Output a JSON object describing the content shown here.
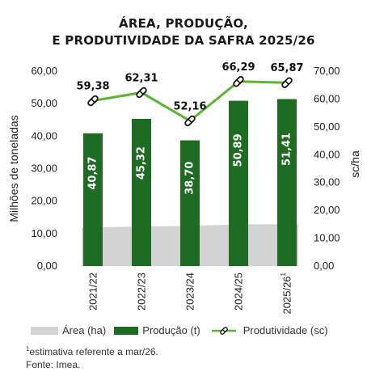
{
  "title": {
    "line1": "ÁREA, PRODUÇÃO,",
    "line2": "E PRODUTIVIDADE DA SAFRA 2025/26"
  },
  "colors": {
    "area": "#d3d3d3",
    "production": "#1e6b23",
    "productivity": "#5cb531"
  },
  "chart_data": {
    "type": "bar",
    "categories": [
      "2021/22",
      "2022/23",
      "2023/24",
      "2024/25",
      "2025/26"
    ],
    "category_superscripts": [
      "",
      "",
      "",
      "",
      "1"
    ],
    "series": [
      {
        "name": "Área (ha)",
        "type": "area",
        "axis": "left",
        "values": [
          11.8,
          12.2,
          12.4,
          12.8,
          13.0
        ]
      },
      {
        "name": "Produção (t)",
        "type": "bar",
        "axis": "left",
        "values": [
          40.87,
          45.32,
          38.7,
          50.89,
          51.41
        ],
        "labels": [
          "40,87",
          "45,32",
          "38,70",
          "50,89",
          "51,41"
        ]
      },
      {
        "name": "Produtividade (sc)",
        "type": "line",
        "axis": "right",
        "values": [
          59.38,
          62.31,
          52.16,
          66.29,
          65.87
        ],
        "labels": [
          "59,38",
          "62,31",
          "52,16",
          "66,29",
          "65,87"
        ]
      }
    ],
    "ylabel": "Milhões de toneladas",
    "y2label": "sc/ha",
    "ylim": [
      0,
      60
    ],
    "y2lim": [
      0,
      70
    ],
    "yticks": [
      "0,00",
      "10,00",
      "20,00",
      "30,00",
      "40,00",
      "50,00",
      "60,00"
    ],
    "y2ticks": [
      "0,00",
      "10,00",
      "20,00",
      "30,00",
      "40,00",
      "50,00",
      "60,00",
      "70,00"
    ],
    "grid": false,
    "legend": "bottom"
  },
  "legend": {
    "area": "Área (ha)",
    "production": "Produção (t)",
    "productivity": "Produtividade (sc)"
  },
  "notes": {
    "footnote_mark": "1",
    "footnote": "estimativa referente a mar/26.",
    "source": "Fonte: Imea."
  }
}
